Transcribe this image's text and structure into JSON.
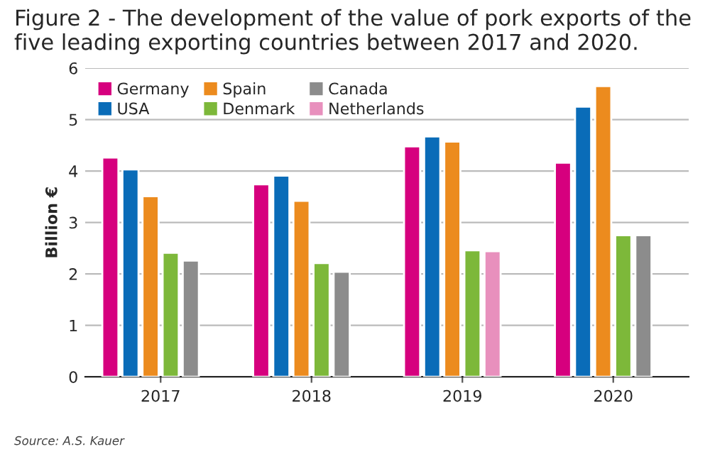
{
  "chart_data": {
    "type": "bar",
    "title": "Figure 2 - The development of the value of pork exports of the five leading exporting countries between 2017 and 2020.",
    "ylabel": "Billion €",
    "categories": [
      "2017",
      "2018",
      "2019",
      "2020"
    ],
    "series": [
      {
        "name": "Germany",
        "color": "#d6007e",
        "values": [
          4.26,
          3.74,
          4.48,
          4.16
        ]
      },
      {
        "name": "USA",
        "color": "#0a6cb8",
        "values": [
          4.03,
          3.91,
          4.67,
          5.25
        ]
      },
      {
        "name": "Spain",
        "color": "#ec8b1e",
        "values": [
          3.51,
          3.42,
          4.57,
          5.65
        ]
      },
      {
        "name": "Denmark",
        "color": "#7db83a",
        "values": [
          2.41,
          2.21,
          2.46,
          2.75
        ]
      },
      {
        "name": "Canada",
        "color": "#8c8c8c",
        "values": [
          2.26,
          2.04,
          null,
          2.75
        ]
      },
      {
        "name": "Netherlands",
        "color": "#e890bd",
        "values": [
          null,
          null,
          2.44,
          null
        ]
      }
    ],
    "ylim": [
      0,
      6
    ],
    "yticks": [
      0,
      1,
      2,
      3,
      4,
      5,
      6
    ],
    "grid": "y",
    "legend": "top left",
    "annotations": [
      "Source: A.S. Kauer"
    ]
  }
}
